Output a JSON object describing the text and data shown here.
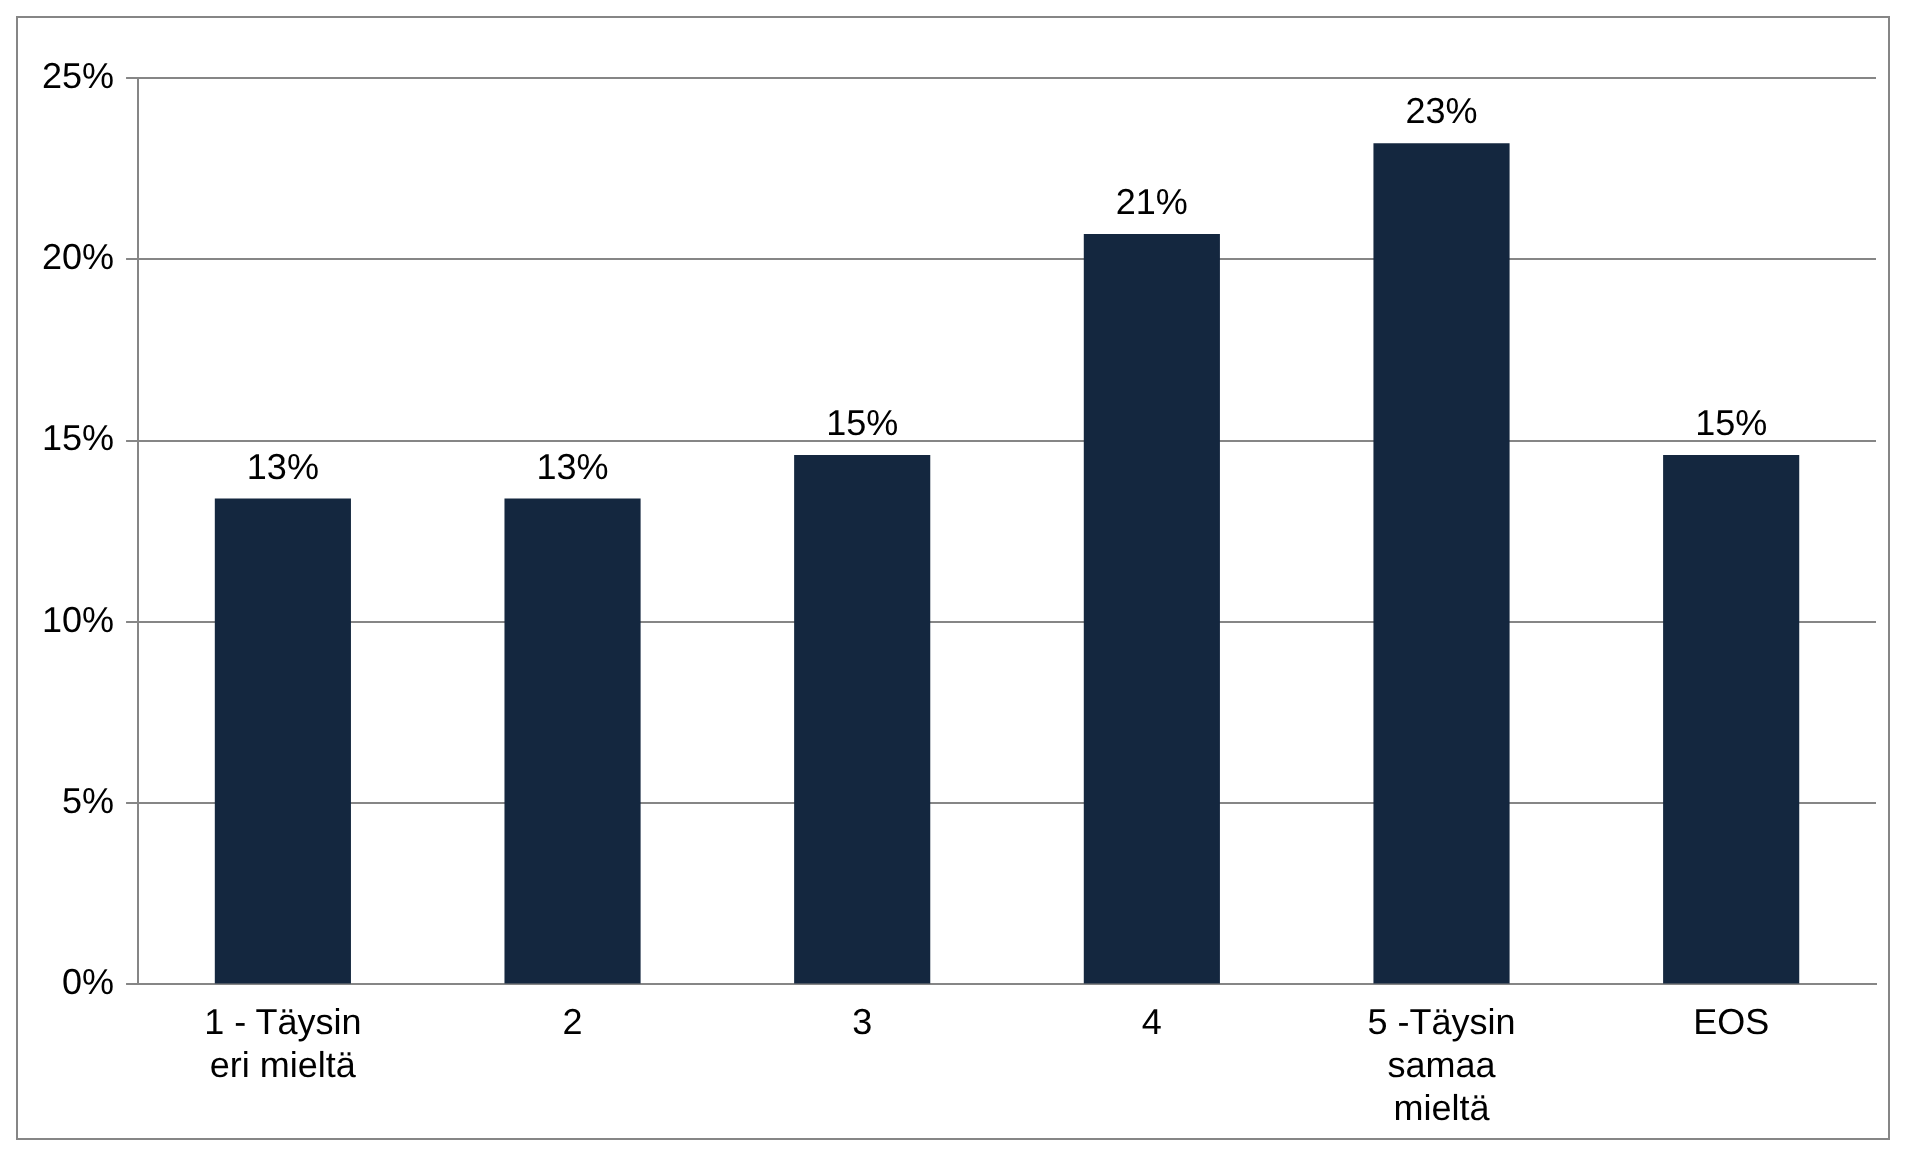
{
  "chart_data": {
    "type": "bar",
    "categories": [
      "1 - Täysin eri mieltä",
      "2",
      "3",
      "4",
      "5 -Täysin samaa mieltä",
      "EOS"
    ],
    "values": [
      13.4,
      13.4,
      14.6,
      20.7,
      23.2,
      14.6
    ],
    "value_labels": [
      "13%",
      "13%",
      "15%",
      "21%",
      "23%",
      "15%"
    ],
    "color": "#14273f",
    "ylim": [
      0,
      25
    ],
    "yticks": [
      {
        "value": 0,
        "label": "0%"
      },
      {
        "value": 5,
        "label": "5%"
      },
      {
        "value": 10,
        "label": "10%"
      },
      {
        "value": 15,
        "label": "15%"
      },
      {
        "value": 20,
        "label": "20%"
      },
      {
        "value": 25,
        "label": "25%"
      }
    ],
    "grid": "y",
    "legend": false
  }
}
